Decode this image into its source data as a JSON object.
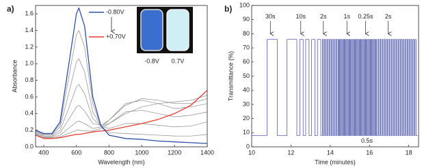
{
  "chart_data": [
    {
      "type": "line",
      "panel_label": "a)",
      "x_label": "Wavelength (nm)",
      "y_label": "Absorbance",
      "xlim": [
        350,
        1400
      ],
      "xticks": [
        400,
        600,
        800,
        1000,
        1200,
        1400
      ],
      "ylim": [
        0,
        1.7
      ],
      "yticks": [
        {
          "value": 0,
          "label": "0.0"
        },
        0.2,
        0.4,
        0.6,
        0.8,
        {
          "value": 1,
          "label": "1.0"
        },
        1.2,
        1.4,
        1.6
      ],
      "x": [
        350,
        400,
        450,
        500,
        550,
        600,
        615,
        650,
        700,
        750,
        800,
        900,
        1000,
        1100,
        1200,
        1300,
        1400
      ],
      "series": [
        {
          "color": "#8a8a8a",
          "values": [
            0.19,
            0.15,
            0.15,
            0.27,
            0.8,
            1.35,
            1.4,
            1.2,
            0.52,
            0.25,
            0.17,
            0.16,
            0.15,
            0.14,
            0.13,
            0.13,
            0.15
          ]
        },
        {
          "color": "#8a8a8a",
          "values": [
            0.18,
            0.14,
            0.14,
            0.24,
            0.62,
            1.02,
            1.06,
            0.9,
            0.42,
            0.25,
            0.22,
            0.28,
            0.28,
            0.26,
            0.24,
            0.25,
            0.3
          ]
        },
        {
          "color": "#8a8a8a",
          "values": [
            0.17,
            0.13,
            0.13,
            0.2,
            0.45,
            0.72,
            0.75,
            0.64,
            0.34,
            0.25,
            0.28,
            0.42,
            0.44,
            0.4,
            0.36,
            0.38,
            0.42
          ]
        },
        {
          "color": "#8a8a8a",
          "values": [
            0.16,
            0.12,
            0.12,
            0.17,
            0.32,
            0.48,
            0.5,
            0.43,
            0.28,
            0.26,
            0.32,
            0.52,
            0.56,
            0.52,
            0.46,
            0.48,
            0.52
          ]
        },
        {
          "color": "#8a8a8a",
          "values": [
            0.15,
            0.11,
            0.11,
            0.14,
            0.22,
            0.3,
            0.31,
            0.28,
            0.22,
            0.24,
            0.32,
            0.5,
            0.58,
            0.56,
            0.52,
            0.52,
            0.58
          ]
        },
        {
          "color": "#8a8a8a",
          "values": [
            0.14,
            0.1,
            0.1,
            0.12,
            0.16,
            0.2,
            0.2,
            0.19,
            0.19,
            0.22,
            0.28,
            0.4,
            0.48,
            0.52,
            0.54,
            0.56,
            0.62
          ]
        },
        {
          "name": "+0.70V",
          "color": "#e8392f",
          "values": [
            0.14,
            0.1,
            0.1,
            0.11,
            0.13,
            0.15,
            0.15,
            0.16,
            0.18,
            0.19,
            0.2,
            0.24,
            0.28,
            0.33,
            0.4,
            0.5,
            0.68
          ]
        },
        {
          "name": "-0.80V",
          "color": "#2f4fa8",
          "values": [
            0.2,
            0.16,
            0.16,
            0.3,
            0.95,
            1.6,
            1.67,
            1.45,
            0.6,
            0.25,
            0.14,
            0.1,
            0.09,
            0.07,
            0.06,
            0.05,
            0.04
          ]
        }
      ],
      "inset_labels": [
        "-0.8V",
        "0.7V"
      ]
    },
    {
      "type": "line",
      "panel_label": "b)",
      "x_label": "Time (minutes)",
      "y_label": "Transmittance (%)",
      "xlim": [
        10,
        18.5
      ],
      "xticks": [
        10,
        12,
        14,
        16,
        18
      ],
      "ylim": [
        0,
        100
      ],
      "yticks": [
        0,
        10,
        20,
        30,
        40,
        50,
        60,
        70,
        80,
        90,
        100
      ],
      "x": [
        10,
        10.78,
        10.78,
        11.3,
        11.3,
        11.8,
        11.8,
        12.3,
        12.3,
        12.45,
        12.45,
        12.62,
        12.62,
        12.75,
        12.75,
        12.92,
        12.92,
        13.05,
        13.05,
        13.22,
        13.22,
        13.35,
        13.35,
        13.52,
        13.52,
        13.6,
        13.6,
        13.65,
        13.65,
        13.7,
        13.7,
        13.75,
        13.75,
        13.8,
        13.8,
        13.85,
        13.85,
        13.9,
        13.9,
        13.95,
        13.95,
        14,
        14,
        14.05,
        14.05,
        14.1,
        14.1,
        14.15,
        14.15,
        14.2,
        14.2,
        14.25,
        14.25,
        14.3,
        14.3,
        14.35,
        14.35,
        14.4,
        14.4,
        14.44,
        14.44,
        14.48,
        14.48,
        14.52,
        14.52,
        14.56,
        14.56,
        14.6,
        14.6,
        14.64,
        14.64,
        14.68,
        14.68,
        14.72,
        14.72,
        14.76,
        14.76,
        14.8,
        14.8,
        14.84,
        14.84,
        14.88,
        14.88,
        14.92,
        14.92,
        14.96,
        14.96,
        15,
        15,
        15.04,
        15.04,
        15.08,
        15.08,
        15.12,
        15.12,
        15.16,
        15.16,
        15.2,
        15.2,
        15.24,
        15.24,
        15.28,
        15.28,
        15.32,
        15.32,
        15.36,
        15.36,
        15.4,
        15.4,
        15.44,
        15.44,
        15.48,
        15.48,
        15.52,
        15.52,
        15.56,
        15.56,
        15.6,
        15.6,
        15.64,
        15.64,
        15.68,
        15.68,
        15.72,
        15.72,
        15.76,
        15.76,
        15.8,
        15.8,
        15.84,
        15.84,
        15.88,
        15.88,
        15.92,
        15.92,
        15.96,
        15.96,
        16,
        16,
        16.04,
        16.04,
        16.08,
        16.08,
        16.12,
        16.12,
        16.16,
        16.16,
        16.2,
        16.2,
        16.24,
        16.24,
        16.28,
        16.28,
        16.32,
        16.32,
        16.36,
        16.36,
        16.42,
        16.42,
        16.47,
        16.47,
        16.52,
        16.52,
        16.57,
        16.57,
        16.62,
        16.62,
        16.67,
        16.67,
        16.72,
        16.72,
        16.77,
        16.77,
        16.82,
        16.82,
        16.87,
        16.87,
        16.92,
        16.92,
        16.97,
        16.97,
        17.02,
        17.02,
        17.07,
        17.07,
        17.12,
        17.12,
        17.17,
        17.17,
        17.22,
        17.22,
        17.27,
        17.27,
        17.32,
        17.32,
        17.37,
        17.37,
        17.42,
        17.42,
        17.47,
        17.47,
        17.52,
        17.52,
        17.57,
        17.57,
        17.62,
        17.62,
        17.67,
        17.67,
        17.72,
        17.72,
        17.77,
        17.77,
        17.82,
        17.82,
        17.87,
        17.87,
        17.92,
        17.92,
        17.97,
        17.97,
        18.02,
        18.02,
        18.07,
        18.07,
        18.12,
        18.12,
        18.17,
        18.17,
        18.22,
        18.22,
        18.27,
        18.27,
        18.32,
        18.32,
        18.37,
        18.37,
        18.45
      ],
      "series": [
        {
          "color": "#3a44a0",
          "values": [
            8,
            8,
            76,
            76,
            8,
            8,
            76,
            76,
            8,
            8,
            76,
            76,
            8,
            8,
            76,
            76,
            8,
            8,
            76,
            76,
            8,
            8,
            76,
            76,
            8,
            8,
            76,
            76,
            8,
            8,
            76,
            76,
            8,
            8,
            76,
            76,
            8,
            8,
            76,
            76,
            8,
            8,
            76,
            76,
            8,
            8,
            76,
            76,
            8,
            8,
            76,
            76,
            8,
            8,
            76,
            76,
            8,
            8,
            76,
            76,
            8,
            8,
            76,
            76,
            8,
            8,
            76,
            76,
            8,
            8,
            76,
            76,
            8,
            8,
            76,
            76,
            8,
            8,
            76,
            76,
            8,
            8,
            76,
            76,
            8,
            8,
            76,
            76,
            8,
            8,
            76,
            76,
            8,
            8,
            76,
            76,
            8,
            8,
            76,
            76,
            8,
            8,
            76,
            76,
            8,
            8,
            76,
            76,
            8,
            8,
            76,
            76,
            8,
            8,
            76,
            76,
            8,
            8,
            76,
            76,
            8,
            8,
            76,
            76,
            8,
            8,
            76,
            76,
            8,
            8,
            76,
            76,
            8,
            8,
            76,
            76,
            8,
            8,
            76,
            76,
            8,
            8,
            76,
            76,
            8,
            8,
            76,
            76,
            8,
            8,
            76,
            76,
            8,
            8,
            76,
            76,
            8,
            8,
            76,
            76,
            8,
            8,
            76,
            76,
            8,
            8,
            76,
            76,
            8,
            8,
            76,
            76,
            8,
            8,
            76,
            76,
            8,
            8,
            76,
            76,
            8,
            8,
            76,
            76,
            8,
            8,
            76,
            76,
            8,
            8,
            76,
            76,
            8,
            8,
            76,
            76,
            8,
            8,
            76,
            76,
            8,
            8,
            76,
            76,
            8,
            8,
            76,
            76,
            8,
            8,
            76,
            76,
            8,
            8,
            76,
            76,
            8,
            8,
            76,
            76,
            8,
            8,
            76,
            76,
            8,
            8,
            76,
            76,
            8,
            8,
            76,
            76,
            8,
            8,
            76,
            76,
            8,
            8
          ]
        }
      ],
      "annotations": [
        "30s",
        "10s",
        "2s",
        "1s",
        "0.25s",
        "2s",
        "0.5s"
      ]
    }
  ]
}
